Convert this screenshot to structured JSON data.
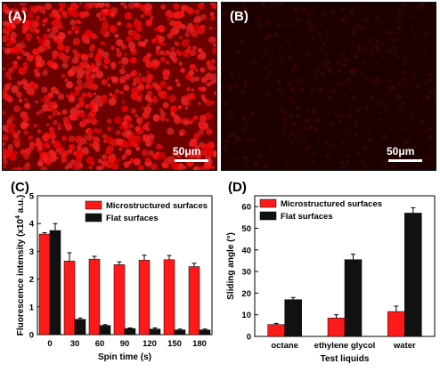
{
  "panels": {
    "A": {
      "label": "(A)",
      "scale_bar": "50μm",
      "intensity": "bright"
    },
    "B": {
      "label": "(B)",
      "scale_bar": "50μm",
      "intensity": "dim"
    },
    "C": {
      "label": "(C)"
    },
    "D": {
      "label": "(D)"
    }
  },
  "colors": {
    "red": "#ff1a1a",
    "black": "#111111"
  },
  "chart_data": [
    {
      "type": "bar",
      "panel": "C",
      "xlabel": "Spin time (s)",
      "ylabel_main": "Fluorescence intensity (x10",
      "ylabel_sup": "4",
      "ylabel_tail": " a.u.)",
      "ylim": [
        0,
        5
      ],
      "yticks": [
        "0",
        "1",
        "2",
        "3",
        "4",
        "5"
      ],
      "categories": [
        "0",
        "30",
        "60",
        "90",
        "120",
        "150",
        "180"
      ],
      "legend_position": "top-right",
      "series": [
        {
          "name": "Microstructured surfaces",
          "color": "#ff1a1a",
          "values": [
            3.62,
            2.65,
            2.72,
            2.52,
            2.68,
            2.7,
            2.45
          ],
          "errors": [
            0.05,
            0.3,
            0.1,
            0.1,
            0.18,
            0.15,
            0.12
          ]
        },
        {
          "name": "Flat surfaces",
          "color": "#111111",
          "values": [
            3.75,
            0.55,
            0.33,
            0.22,
            0.2,
            0.17,
            0.17
          ],
          "errors": [
            0.25,
            0.05,
            0.03,
            0.02,
            0.04,
            0.03,
            0.03
          ]
        }
      ]
    },
    {
      "type": "bar",
      "panel": "D",
      "xlabel": "Test liquids",
      "ylabel": "Sliding angle (°)",
      "ylim": [
        0,
        65
      ],
      "yticks": [
        "0",
        "10",
        "20",
        "30",
        "40",
        "50",
        "60"
      ],
      "categories": [
        "octane",
        "ethylene glycol",
        "water"
      ],
      "legend_position": "top-left",
      "series": [
        {
          "name": "Microstructured surfaces",
          "color": "#ff1a1a",
          "values": [
            5.5,
            8.5,
            11.5
          ],
          "errors": [
            0.5,
            1.5,
            2.5
          ]
        },
        {
          "name": "Flat surfaces",
          "color": "#111111",
          "values": [
            17,
            35.5,
            57
          ],
          "errors": [
            1,
            2.5,
            2.5
          ]
        }
      ]
    }
  ]
}
